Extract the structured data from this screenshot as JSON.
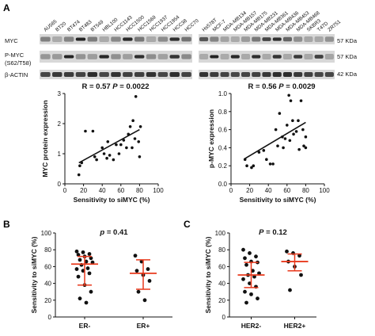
{
  "panels": {
    "a": "A",
    "b": "B",
    "c": "C"
  },
  "blot": {
    "rows": [
      "MYC",
      "P-MYC",
      "(S62/T58)",
      "β-ACTIN"
    ],
    "kda": [
      "57 KDa",
      "57 KDa",
      "42 KDa"
    ],
    "left_cells": [
      "AU565",
      "BT20",
      "BT474",
      "BT483",
      "BT549",
      "HBL100",
      "HCC1143",
      "HCC1500",
      "HCC1569",
      "HCC1937",
      "HCC1954",
      "HCC38",
      "HCC70"
    ],
    "right_cells": [
      "Hs578T",
      "MCF-7",
      "MDA-MB134",
      "MDA-MB157",
      "MDA-MB175",
      "MDA-MB231",
      "MDA-MB361",
      "MDA-MB436",
      "MDA-MB453",
      "MDA-MB468",
      "SKBR3",
      "T47D",
      "ZR751"
    ]
  },
  "chart_data": [
    {
      "type": "scatter",
      "ylabel": "MYC protein expression",
      "xlabel": "Sensitivity to siMYC (%)",
      "annotation": "R = 0.57",
      "annotation_p": "P = 0.0022",
      "xlim": [
        0,
        100
      ],
      "ylim": [
        0,
        3
      ],
      "xticks": [
        "0",
        "20",
        "40",
        "60",
        "80",
        "100"
      ],
      "yticks": [
        "0",
        "1",
        "2",
        "3"
      ],
      "points": [
        [
          15,
          0.3
        ],
        [
          16,
          0.6
        ],
        [
          18,
          0.7
        ],
        [
          22,
          1.75
        ],
        [
          30,
          1.75
        ],
        [
          32,
          0.9
        ],
        [
          34,
          0.8
        ],
        [
          40,
          1.2
        ],
        [
          42,
          1.0
        ],
        [
          45,
          0.85
        ],
        [
          46,
          1.4
        ],
        [
          48,
          0.95
        ],
        [
          52,
          0.8
        ],
        [
          55,
          1.3
        ],
        [
          58,
          1.0
        ],
        [
          60,
          1.3
        ],
        [
          63,
          1.45
        ],
        [
          66,
          1.2
        ],
        [
          68,
          1.65
        ],
        [
          70,
          1.9
        ],
        [
          72,
          1.2
        ],
        [
          73,
          2.1
        ],
        [
          75,
          1.5
        ],
        [
          76,
          2.9
        ],
        [
          79,
          1.4
        ],
        [
          80,
          0.9
        ],
        [
          81,
          1.9
        ]
      ],
      "fit": [
        [
          15,
          0.7
        ],
        [
          80,
          1.8
        ]
      ]
    },
    {
      "type": "scatter",
      "ylabel": "p-MYC expression",
      "xlabel": "Sensitivity to siMYC (%)",
      "annotation": "R = 0.56",
      "annotation_p": "P = 0.0029",
      "xlim": [
        0,
        100
      ],
      "ylim": [
        0,
        1.0
      ],
      "xticks": [
        "0",
        "20",
        "40",
        "60",
        "80",
        "100"
      ],
      "yticks": [
        "0.0",
        "0.2",
        "0.4",
        "0.6",
        "0.8",
        "1.0"
      ],
      "points": [
        [
          15,
          0.27
        ],
        [
          17,
          0.2
        ],
        [
          22,
          0.18
        ],
        [
          24,
          0.2
        ],
        [
          30,
          0.35
        ],
        [
          35,
          0.37
        ],
        [
          38,
          0.27
        ],
        [
          42,
          0.22
        ],
        [
          45,
          0.22
        ],
        [
          48,
          0.6
        ],
        [
          50,
          0.42
        ],
        [
          52,
          0.78
        ],
        [
          55,
          0.52
        ],
        [
          56,
          0.4
        ],
        [
          58,
          0.5
        ],
        [
          60,
          0.65
        ],
        [
          62,
          0.98
        ],
        [
          63,
          0.48
        ],
        [
          64,
          0.92
        ],
        [
          66,
          0.7
        ],
        [
          67,
          0.55
        ],
        [
          70,
          0.58
        ],
        [
          72,
          0.7
        ],
        [
          73,
          0.38
        ],
        [
          75,
          0.92
        ],
        [
          77,
          0.6
        ],
        [
          78,
          0.42
        ],
        [
          80,
          0.4
        ],
        [
          80,
          0.52
        ]
      ],
      "fit": [
        [
          15,
          0.28
        ],
        [
          80,
          0.68
        ]
      ]
    },
    {
      "type": "scatter",
      "ylabel": "Sensitivity to siMYC (%)",
      "annotation": "p = 0.41",
      "ylim": [
        0,
        100
      ],
      "yticks": [
        "0",
        "20",
        "40",
        "60",
        "80",
        "100"
      ],
      "categories": [
        "ER-",
        "ER+"
      ],
      "groups": [
        {
          "name": "ER-",
          "values": [
            78,
            77,
            75,
            74,
            72,
            70,
            68,
            66,
            65,
            62,
            58,
            57,
            55,
            52,
            48,
            38,
            30,
            22,
            17
          ],
          "mean": 63,
          "error": [
            38,
            72
          ]
        },
        {
          "name": "ER+",
          "values": [
            73,
            66,
            57,
            55,
            50,
            43,
            30,
            20
          ],
          "mean": 52,
          "error": [
            33,
            68
          ]
        }
      ]
    },
    {
      "type": "scatter",
      "ylabel": "Sensitivity to siMYC (%)",
      "annotation": "P = 0.12",
      "ylim": [
        0,
        100
      ],
      "yticks": [
        "0",
        "20",
        "40",
        "60",
        "80",
        "100"
      ],
      "categories": [
        "HER2-",
        "HER2+"
      ],
      "groups": [
        {
          "name": "HER2-",
          "values": [
            80,
            76,
            72,
            70,
            66,
            65,
            62,
            55,
            52,
            50,
            48,
            45,
            40,
            36,
            30,
            27,
            22,
            17
          ],
          "mean": 50,
          "error": [
            35,
            65
          ]
        },
        {
          "name": "HER2+",
          "values": [
            78,
            76,
            73,
            66,
            60,
            50,
            32
          ],
          "mean": 66,
          "error": [
            55,
            75
          ]
        }
      ]
    }
  ]
}
